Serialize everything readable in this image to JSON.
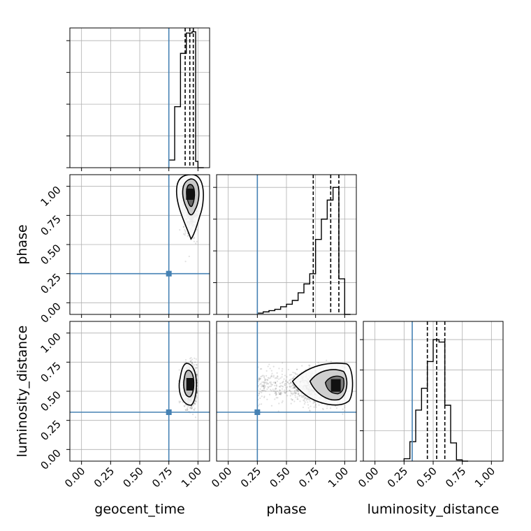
{
  "chart_data": {
    "type": "corner",
    "parameters": [
      "geocent_time",
      "phase",
      "luminosity_distance"
    ],
    "truths": {
      "geocent_time": 0.75,
      "phase": 0.25,
      "luminosity_distance": 0.32
    },
    "axis_range": [
      -0.1,
      1.1
    ],
    "ticks": [
      "0.00",
      "0.25",
      "0.50",
      "0.75",
      "1.00"
    ],
    "tick_values": [
      0.0,
      0.25,
      0.5,
      0.75,
      1.0
    ],
    "grid": true,
    "truth_color": "#4682b4",
    "histograms": [
      {
        "parameter": "geocent_time",
        "bin_edges": [
          0.75,
          0.8,
          0.85,
          0.9,
          0.95,
          0.98,
          1.0,
          1.05
        ],
        "density": [
          0.06,
          0.48,
          0.9,
          1.06,
          1.07,
          0.05,
          0.0
        ],
        "quantiles": [
          0.89,
          0.93,
          0.96
        ],
        "ylim": [
          0,
          1.1
        ]
      },
      {
        "parameter": "phase",
        "bin_edges": [
          0.25,
          0.3,
          0.35,
          0.4,
          0.45,
          0.5,
          0.55,
          0.6,
          0.65,
          0.7,
          0.75,
          0.8,
          0.85,
          0.9,
          0.95,
          1.0,
          1.05
        ],
        "density": [
          0.01,
          0.02,
          0.03,
          0.04,
          0.06,
          0.08,
          0.11,
          0.17,
          0.24,
          0.32,
          0.59,
          0.75,
          0.9,
          1.0,
          0.28,
          0.0
        ],
        "quantiles": [
          0.73,
          0.88,
          0.95
        ],
        "ylim": [
          0,
          1.1
        ]
      },
      {
        "parameter": "luminosity_distance",
        "bin_edges": [
          0.25,
          0.3,
          0.35,
          0.4,
          0.45,
          0.5,
          0.55,
          0.6,
          0.65,
          0.7,
          0.75,
          0.8
        ],
        "density": [
          0.02,
          0.16,
          0.42,
          0.6,
          0.82,
          1.0,
          0.98,
          0.46,
          0.15,
          0.01,
          0.0
        ],
        "quantiles": [
          0.45,
          0.53,
          0.6
        ],
        "ylim": [
          0,
          1.15
        ]
      }
    ],
    "scatter_panels": [
      {
        "x": "geocent_time",
        "y": "phase",
        "x_mean": 0.94,
        "x_sd": 0.03,
        "y_mean": 0.9,
        "y_sd": 0.13,
        "point_count": 1500,
        "contour_center": [
          0.94,
          0.92
        ]
      },
      {
        "x": "geocent_time",
        "y": "luminosity_distance",
        "x_mean": 0.93,
        "x_sd": 0.03,
        "y_mean": 0.55,
        "y_sd": 0.08,
        "point_count": 1500,
        "contour_center": [
          0.93,
          0.56
        ]
      },
      {
        "x": "phase",
        "y": "luminosity_distance",
        "x_mean": 0.86,
        "x_sd": 0.12,
        "y_mean": 0.55,
        "y_sd": 0.07,
        "point_count": 1800,
        "contour_center": [
          0.93,
          0.55
        ]
      }
    ]
  }
}
